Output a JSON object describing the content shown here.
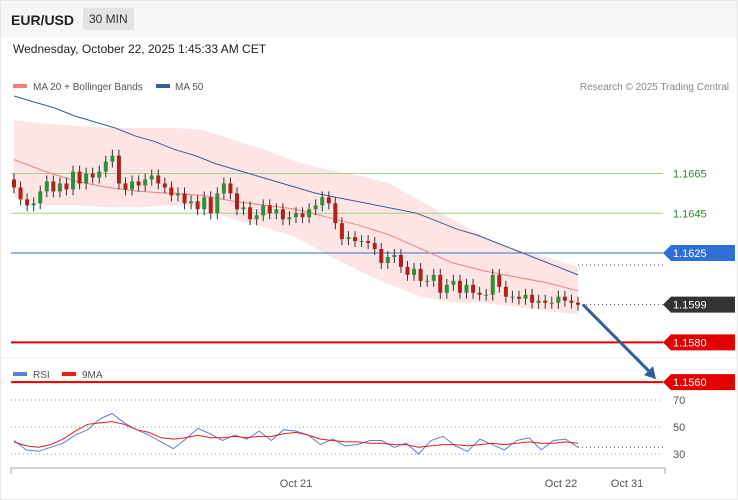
{
  "header": {
    "symbol": "EUR/USD",
    "timeframe": "30 MIN"
  },
  "datetime": "Wednesday, October 22, 2025 1:45:33 AM CET",
  "legend": {
    "ma20_label": "MA 20 + Bollinger Bands",
    "ma50_label": "MA 50",
    "ma20_color": "#f08080",
    "ma50_color": "#3c5d96",
    "bands_color": "#fde0e0",
    "credit": "Research © 2025 Trading Central"
  },
  "rsi_legend": {
    "rsi_label": "RSI",
    "ma_label": "9MA",
    "rsi_color": "#5b7fd4",
    "ma_color": "#e02020"
  },
  "chart_data": [
    {
      "type": "candlestick",
      "title": "",
      "y_range": [
        1.1546,
        1.1702
      ],
      "x_ticks": [
        "Oct 21",
        "Oct 22",
        "Oct 31"
      ],
      "levels": [
        {
          "value": 1.1665,
          "label": "1.1665",
          "style": "resistance",
          "color": "#2e8b2e",
          "line": "#a8d08d"
        },
        {
          "value": 1.1645,
          "label": "1.1645",
          "style": "resistance",
          "color": "#2e8b2e",
          "line": "#a8d08d"
        },
        {
          "value": 1.1625,
          "label": "1.1625",
          "style": "pivot",
          "color": "#2f6fd6",
          "line": "#2f6fd6"
        },
        {
          "value": 1.1599,
          "label": "1.1599",
          "style": "last",
          "color": "#333333",
          "line": "#333333"
        },
        {
          "value": 1.158,
          "label": "1.1580",
          "style": "target",
          "color": "#e00000",
          "line": "#e00000"
        },
        {
          "value": 1.156,
          "label": "1.1560",
          "style": "target",
          "color": "#e00000",
          "line": "#e00000"
        }
      ],
      "forecast_arrow": {
        "from": 1.1599,
        "to": 1.156,
        "color": "#2f5f9e"
      },
      "closes": [
        1.1658,
        1.1652,
        1.1649,
        1.165,
        1.1656,
        1.1661,
        1.1656,
        1.166,
        1.1657,
        1.1666,
        1.166,
        1.1665,
        1.1663,
        1.1666,
        1.1671,
        1.1674,
        1.166,
        1.1657,
        1.1661,
        1.1659,
        1.1662,
        1.1664,
        1.166,
        1.1658,
        1.1654,
        1.1655,
        1.165,
        1.1651,
        1.1647,
        1.1653,
        1.1645,
        1.1655,
        1.166,
        1.1655,
        1.1647,
        1.1648,
        1.1642,
        1.1644,
        1.1649,
        1.1645,
        1.1647,
        1.1642,
        1.1643,
        1.1645,
        1.1643,
        1.1647,
        1.1649,
        1.1653,
        1.165,
        1.164,
        1.1632,
        1.1633,
        1.1631,
        1.1631,
        1.163,
        1.1627,
        1.162,
        1.1623,
        1.1624,
        1.1618,
        1.1614,
        1.1617,
        1.1611,
        1.1611,
        1.1614,
        1.1605,
        1.1609,
        1.1611,
        1.1605,
        1.1609,
        1.1605,
        1.1604,
        1.1604,
        1.1614,
        1.1608,
        1.1603,
        1.1603,
        1.1602,
        1.1604,
        1.16,
        1.1601,
        1.16,
        1.16,
        1.1603,
        1.1601,
        1.16,
        1.1599
      ],
      "ma50": [
        1.1704,
        1.1701,
        1.1698,
        1.1694,
        1.1691,
        1.1688,
        1.1684,
        1.1681,
        1.1677,
        1.1674,
        1.167,
        1.1667,
        1.1664,
        1.1661,
        1.1658,
        1.1655,
        1.1653,
        1.1651,
        1.1649,
        1.1647,
        1.1645,
        1.1641,
        1.1637,
        1.1634,
        1.163,
        1.1626,
        1.1622,
        1.1618,
        1.1614
      ],
      "ma20": [
        1.1672,
        1.1666,
        1.1661,
        1.1658,
        1.1656,
        1.1655,
        1.1654,
        1.1651,
        1.1649,
        1.1647,
        1.1643,
        1.1639,
        1.1634,
        1.1627,
        1.162,
        1.1616,
        1.1613,
        1.161,
        1.1606
      ],
      "bb_upper": [
        1.1692,
        1.169,
        1.1689,
        1.1688,
        1.1688,
        1.1688,
        1.1687,
        1.1682,
        1.1677,
        1.1671,
        1.1667,
        1.1664,
        1.166,
        1.1651,
        1.1642,
        1.1633,
        1.1627,
        1.1623,
        1.1618
      ],
      "bb_lower": [
        1.1653,
        1.1649,
        1.1649,
        1.1648,
        1.1648,
        1.1649,
        1.1648,
        1.1642,
        1.1638,
        1.1633,
        1.1624,
        1.1616,
        1.1609,
        1.1603,
        1.16,
        1.16,
        1.1598,
        1.1596,
        1.1594
      ]
    },
    {
      "type": "line",
      "title": "",
      "y_range": [
        25,
        75
      ],
      "y_ticks": [
        70,
        50,
        30
      ],
      "series": [
        {
          "name": "RSI",
          "values": [
            40,
            33,
            32,
            35,
            38,
            44,
            48,
            56,
            60,
            53,
            48,
            44,
            39,
            34,
            41,
            49,
            45,
            40,
            44,
            41,
            47,
            40,
            48,
            47,
            44,
            37,
            41,
            36,
            37,
            40,
            40,
            35,
            38,
            30,
            40,
            43,
            36,
            32,
            41,
            37,
            33,
            40,
            42,
            33,
            40,
            41,
            35
          ]
        },
        {
          "name": "9MA",
          "values": [
            39,
            36,
            35,
            37,
            41,
            47,
            52,
            53,
            54,
            52,
            48,
            46,
            42,
            41,
            42,
            44,
            42,
            42,
            43,
            42,
            43,
            43,
            45,
            46,
            44,
            41,
            40,
            39,
            39,
            38,
            38,
            37,
            37,
            35,
            36,
            37,
            37,
            36,
            37,
            38,
            37,
            38,
            39,
            38,
            38,
            39,
            38
          ]
        }
      ]
    }
  ]
}
